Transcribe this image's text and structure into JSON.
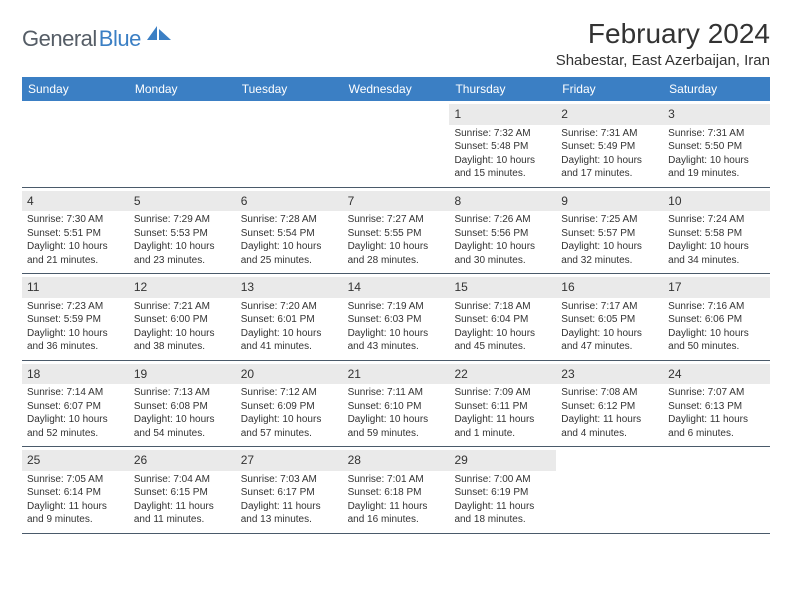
{
  "logo": {
    "text1": "General",
    "text2": "Blue"
  },
  "title": "February 2024",
  "location": "Shabestar, East Azerbaijan, Iran",
  "weekdays": [
    "Sunday",
    "Monday",
    "Tuesday",
    "Wednesday",
    "Thursday",
    "Friday",
    "Saturday"
  ],
  "colors": {
    "header_bg": "#3b7fc4",
    "daynum_bg": "#eaeaea",
    "text": "#333333",
    "rule": "#4a5a6a"
  },
  "weeks": [
    [
      null,
      null,
      null,
      null,
      {
        "n": "1",
        "sr": "7:32 AM",
        "ss": "5:48 PM",
        "dl": "10 hours and 15 minutes."
      },
      {
        "n": "2",
        "sr": "7:31 AM",
        "ss": "5:49 PM",
        "dl": "10 hours and 17 minutes."
      },
      {
        "n": "3",
        "sr": "7:31 AM",
        "ss": "5:50 PM",
        "dl": "10 hours and 19 minutes."
      }
    ],
    [
      {
        "n": "4",
        "sr": "7:30 AM",
        "ss": "5:51 PM",
        "dl": "10 hours and 21 minutes."
      },
      {
        "n": "5",
        "sr": "7:29 AM",
        "ss": "5:53 PM",
        "dl": "10 hours and 23 minutes."
      },
      {
        "n": "6",
        "sr": "7:28 AM",
        "ss": "5:54 PM",
        "dl": "10 hours and 25 minutes."
      },
      {
        "n": "7",
        "sr": "7:27 AM",
        "ss": "5:55 PM",
        "dl": "10 hours and 28 minutes."
      },
      {
        "n": "8",
        "sr": "7:26 AM",
        "ss": "5:56 PM",
        "dl": "10 hours and 30 minutes."
      },
      {
        "n": "9",
        "sr": "7:25 AM",
        "ss": "5:57 PM",
        "dl": "10 hours and 32 minutes."
      },
      {
        "n": "10",
        "sr": "7:24 AM",
        "ss": "5:58 PM",
        "dl": "10 hours and 34 minutes."
      }
    ],
    [
      {
        "n": "11",
        "sr": "7:23 AM",
        "ss": "5:59 PM",
        "dl": "10 hours and 36 minutes."
      },
      {
        "n": "12",
        "sr": "7:21 AM",
        "ss": "6:00 PM",
        "dl": "10 hours and 38 minutes."
      },
      {
        "n": "13",
        "sr": "7:20 AM",
        "ss": "6:01 PM",
        "dl": "10 hours and 41 minutes."
      },
      {
        "n": "14",
        "sr": "7:19 AM",
        "ss": "6:03 PM",
        "dl": "10 hours and 43 minutes."
      },
      {
        "n": "15",
        "sr": "7:18 AM",
        "ss": "6:04 PM",
        "dl": "10 hours and 45 minutes."
      },
      {
        "n": "16",
        "sr": "7:17 AM",
        "ss": "6:05 PM",
        "dl": "10 hours and 47 minutes."
      },
      {
        "n": "17",
        "sr": "7:16 AM",
        "ss": "6:06 PM",
        "dl": "10 hours and 50 minutes."
      }
    ],
    [
      {
        "n": "18",
        "sr": "7:14 AM",
        "ss": "6:07 PM",
        "dl": "10 hours and 52 minutes."
      },
      {
        "n": "19",
        "sr": "7:13 AM",
        "ss": "6:08 PM",
        "dl": "10 hours and 54 minutes."
      },
      {
        "n": "20",
        "sr": "7:12 AM",
        "ss": "6:09 PM",
        "dl": "10 hours and 57 minutes."
      },
      {
        "n": "21",
        "sr": "7:11 AM",
        "ss": "6:10 PM",
        "dl": "10 hours and 59 minutes."
      },
      {
        "n": "22",
        "sr": "7:09 AM",
        "ss": "6:11 PM",
        "dl": "11 hours and 1 minute."
      },
      {
        "n": "23",
        "sr": "7:08 AM",
        "ss": "6:12 PM",
        "dl": "11 hours and 4 minutes."
      },
      {
        "n": "24",
        "sr": "7:07 AM",
        "ss": "6:13 PM",
        "dl": "11 hours and 6 minutes."
      }
    ],
    [
      {
        "n": "25",
        "sr": "7:05 AM",
        "ss": "6:14 PM",
        "dl": "11 hours and 9 minutes."
      },
      {
        "n": "26",
        "sr": "7:04 AM",
        "ss": "6:15 PM",
        "dl": "11 hours and 11 minutes."
      },
      {
        "n": "27",
        "sr": "7:03 AM",
        "ss": "6:17 PM",
        "dl": "11 hours and 13 minutes."
      },
      {
        "n": "28",
        "sr": "7:01 AM",
        "ss": "6:18 PM",
        "dl": "11 hours and 16 minutes."
      },
      {
        "n": "29",
        "sr": "7:00 AM",
        "ss": "6:19 PM",
        "dl": "11 hours and 18 minutes."
      },
      null,
      null
    ]
  ],
  "labels": {
    "sunrise": "Sunrise: ",
    "sunset": "Sunset: ",
    "daylight": "Daylight: "
  }
}
